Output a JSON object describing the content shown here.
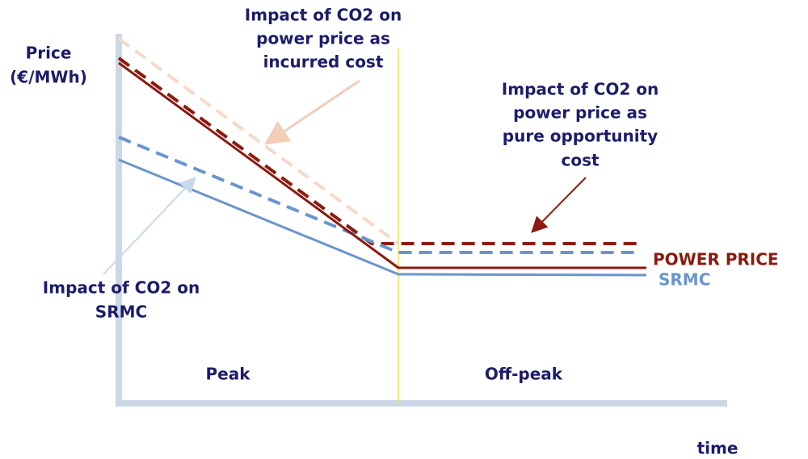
{
  "y_axis_label": [
    "Price",
    "(€/MWh)"
  ],
  "x_axis_label": "time",
  "annotations": {
    "incurred": [
      "Impact of CO2 on",
      "power price as",
      "incurred cost"
    ],
    "opportunity": [
      "Impact of CO2 on",
      "power price as",
      "pure opportunity",
      "cost"
    ],
    "srmc": [
      "Impact of CO2 on",
      "SRMC"
    ]
  },
  "legend": {
    "power_price": "POWER PRICE",
    "srmc": "SRMC"
  },
  "regions": [
    "Peak",
    "Off-peak"
  ]
}
